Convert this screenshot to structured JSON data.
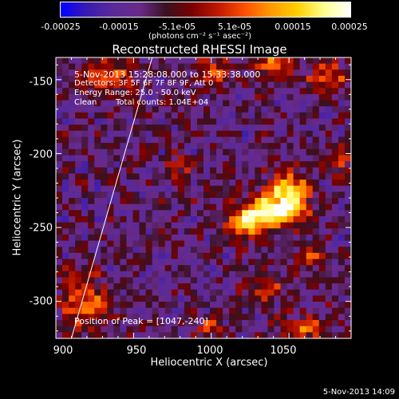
{
  "colorbar": {
    "ticks": [
      "-0.00025",
      "-0.00015",
      "-5.1e-05",
      "5.1e-05",
      "0.00015",
      "0.00025"
    ],
    "units": "(photons cm⁻² s⁻¹ asec⁻²)",
    "stops": [
      "#0000ff",
      "#3a1bb0",
      "#5a2a9a",
      "#6a2a8a",
      "#3a1020",
      "#7a0000",
      "#c01a00",
      "#ff5000",
      "#ff9a00",
      "#ffd000",
      "#ffff90",
      "#ffffff"
    ]
  },
  "title": "Reconstructed RHESSI Image",
  "info": {
    "time": "5-Nov-2013 15:28:08.000 to 15:33:38.000",
    "detectors": "Detectors: 3F 5F 6F 7F 8F 9F, Att 0",
    "energy": "Energy Range: 25.0 - 50.0 keV",
    "clean_label": "Clean",
    "total_counts": "Total counts: 1.04E+04",
    "peak": "Position of Peak = [1047,-240]"
  },
  "timestamp": "5-Nov-2013 14:09",
  "chart_data": {
    "type": "heatmap",
    "title": "Reconstructed RHESSI Image",
    "xlabel": "Heliocentric X (arcsec)",
    "ylabel": "Heliocentric Y (arcsec)",
    "xlim": [
      900,
      1090
    ],
    "ylim": [
      -325,
      -135
    ],
    "xticks": [
      "900",
      "950",
      "1000",
      "1050"
    ],
    "yticks": [
      "-150",
      "-200",
      "-250",
      "-300"
    ],
    "zlim": [
      -0.00025,
      0.00025
    ],
    "peak": [
      1047,
      -240
    ],
    "sources": [
      {
        "x": 1037,
        "y": -240,
        "sx": 14,
        "sy": 7,
        "amp": 1.0
      },
      {
        "x": 1050,
        "y": -225,
        "sx": 9,
        "sy": 8,
        "amp": 0.75
      },
      {
        "x": 1022,
        "y": -250,
        "sx": 8,
        "sy": 6,
        "amp": 0.55
      },
      {
        "x": 935,
        "y": -148,
        "sx": 12,
        "sy": 9,
        "amp": 0.45
      },
      {
        "x": 1000,
        "y": -145,
        "sx": 7,
        "sy": 6,
        "amp": 0.5
      },
      {
        "x": 1042,
        "y": -140,
        "sx": 8,
        "sy": 6,
        "amp": 0.55
      },
      {
        "x": 1075,
        "y": -148,
        "sx": 8,
        "sy": 8,
        "amp": 0.45
      },
      {
        "x": 918,
        "y": -300,
        "sx": 10,
        "sy": 12,
        "amp": 0.5
      },
      {
        "x": 1035,
        "y": -292,
        "sx": 8,
        "sy": 6,
        "amp": 0.45
      },
      {
        "x": 1060,
        "y": -318,
        "sx": 9,
        "sy": 6,
        "amp": 0.45
      },
      {
        "x": 1000,
        "y": -318,
        "sx": 6,
        "sy": 5,
        "amp": 0.35
      },
      {
        "x": 980,
        "y": -210,
        "sx": 6,
        "sy": 6,
        "amp": 0.3
      },
      {
        "x": 1082,
        "y": -205,
        "sx": 6,
        "sy": 8,
        "amp": 0.35
      },
      {
        "x": 1065,
        "y": -270,
        "sx": 7,
        "sy": 5,
        "amp": 0.35
      }
    ],
    "limb_line": {
      "x1": 910,
      "y1": -325,
      "x2": 962,
      "y2": -135
    }
  }
}
